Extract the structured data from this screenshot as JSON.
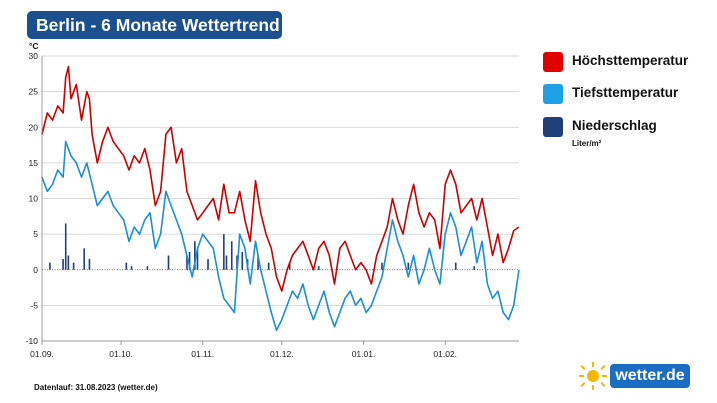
{
  "title": "Berlin - 6 Monate Wettertrend",
  "unit": "°C",
  "legend": {
    "items": [
      {
        "label": "Höchsttemperatur",
        "color": "#e00000"
      },
      {
        "label": "Tiefsttemperatur",
        "color": "#1ea0e6"
      },
      {
        "label": "Niederschlag",
        "color": "#1f3f7a"
      }
    ],
    "precip_unit": "Liter/m²"
  },
  "footer": "Datenlauf: 31.08.2023 (wetter.de)",
  "logo": {
    "text": "wetter.de",
    "icon": "sun-icon"
  },
  "chart_data": {
    "type": "line",
    "x_ticks": [
      "01.09.",
      "01.10.",
      "01.11.",
      "01.12.",
      "01.01.",
      "01.02."
    ],
    "x_start": "2023-09-01",
    "x_end": "2024-02-29",
    "ylim": [
      -10,
      30
    ],
    "yticks": [
      -10,
      -5,
      0,
      5,
      10,
      15,
      20,
      25,
      30
    ],
    "grid": true,
    "legend_position": "right",
    "series": [
      {
        "name": "Höchsttemperatur",
        "color": "#cc0000",
        "points": [
          [
            "2023-09-01",
            19
          ],
          [
            "2023-09-03",
            22
          ],
          [
            "2023-09-05",
            21
          ],
          [
            "2023-09-07",
            23
          ],
          [
            "2023-09-09",
            22
          ],
          [
            "2023-09-10",
            27
          ],
          [
            "2023-09-11",
            28.5
          ],
          [
            "2023-09-12",
            24
          ],
          [
            "2023-09-14",
            26
          ],
          [
            "2023-09-16",
            21
          ],
          [
            "2023-09-18",
            25
          ],
          [
            "2023-09-19",
            24
          ],
          [
            "2023-09-20",
            19
          ],
          [
            "2023-09-22",
            15
          ],
          [
            "2023-09-24",
            18
          ],
          [
            "2023-09-26",
            20
          ],
          [
            "2023-09-28",
            18
          ],
          [
            "2023-09-30",
            17
          ],
          [
            "2023-10-02",
            16
          ],
          [
            "2023-10-04",
            14
          ],
          [
            "2023-10-06",
            16
          ],
          [
            "2023-10-08",
            15
          ],
          [
            "2023-10-10",
            17
          ],
          [
            "2023-10-12",
            14
          ],
          [
            "2023-10-14",
            9
          ],
          [
            "2023-10-16",
            11
          ],
          [
            "2023-10-18",
            19
          ],
          [
            "2023-10-20",
            20
          ],
          [
            "2023-10-22",
            15
          ],
          [
            "2023-10-24",
            17
          ],
          [
            "2023-10-26",
            11
          ],
          [
            "2023-10-28",
            9
          ],
          [
            "2023-10-30",
            7
          ],
          [
            "2023-11-01",
            8
          ],
          [
            "2023-11-03",
            9
          ],
          [
            "2023-11-05",
            10
          ],
          [
            "2023-11-07",
            7
          ],
          [
            "2023-11-09",
            12
          ],
          [
            "2023-11-11",
            8
          ],
          [
            "2023-11-13",
            8
          ],
          [
            "2023-11-15",
            11
          ],
          [
            "2023-11-17",
            7
          ],
          [
            "2023-11-19",
            4
          ],
          [
            "2023-11-21",
            12.5
          ],
          [
            "2023-11-23",
            8
          ],
          [
            "2023-11-25",
            5
          ],
          [
            "2023-11-27",
            3
          ],
          [
            "2023-11-29",
            -1
          ],
          [
            "2023-12-01",
            -3
          ],
          [
            "2023-12-03",
            0
          ],
          [
            "2023-12-05",
            2
          ],
          [
            "2023-12-07",
            3
          ],
          [
            "2023-12-09",
            4
          ],
          [
            "2023-12-11",
            2
          ],
          [
            "2023-12-13",
            0
          ],
          [
            "2023-12-15",
            3
          ],
          [
            "2023-12-17",
            4
          ],
          [
            "2023-12-19",
            2
          ],
          [
            "2023-12-21",
            -2
          ],
          [
            "2023-12-23",
            3
          ],
          [
            "2023-12-25",
            4
          ],
          [
            "2023-12-27",
            2
          ],
          [
            "2023-12-29",
            0
          ],
          [
            "2023-12-31",
            1
          ],
          [
            "2024-01-02",
            0
          ],
          [
            "2024-01-04",
            -2
          ],
          [
            "2024-01-06",
            2
          ],
          [
            "2024-01-08",
            4
          ],
          [
            "2024-01-10",
            6
          ],
          [
            "2024-01-12",
            10
          ],
          [
            "2024-01-14",
            7
          ],
          [
            "2024-01-16",
            5
          ],
          [
            "2024-01-18",
            9
          ],
          [
            "2024-01-20",
            12
          ],
          [
            "2024-01-22",
            8
          ],
          [
            "2024-01-24",
            6
          ],
          [
            "2024-01-26",
            8
          ],
          [
            "2024-01-28",
            7
          ],
          [
            "2024-01-30",
            3
          ],
          [
            "2024-02-01",
            12
          ],
          [
            "2024-02-03",
            14
          ],
          [
            "2024-02-05",
            12
          ],
          [
            "2024-02-07",
            8
          ],
          [
            "2024-02-09",
            9
          ],
          [
            "2024-02-11",
            10
          ],
          [
            "2024-02-13",
            7
          ],
          [
            "2024-02-15",
            10
          ],
          [
            "2024-02-17",
            6
          ],
          [
            "2024-02-19",
            2
          ],
          [
            "2024-02-21",
            5
          ],
          [
            "2024-02-23",
            1
          ],
          [
            "2024-02-25",
            3
          ],
          [
            "2024-02-27",
            5.5
          ],
          [
            "2024-02-29",
            6
          ]
        ]
      },
      {
        "name": "Tiefsttemperatur",
        "color": "#1a8fd6",
        "points": [
          [
            "2023-09-01",
            13
          ],
          [
            "2023-09-03",
            11
          ],
          [
            "2023-09-05",
            12
          ],
          [
            "2023-09-07",
            14
          ],
          [
            "2023-09-09",
            13
          ],
          [
            "2023-09-10",
            18
          ],
          [
            "2023-09-12",
            16
          ],
          [
            "2023-09-14",
            15
          ],
          [
            "2023-09-16",
            13
          ],
          [
            "2023-09-18",
            15
          ],
          [
            "2023-09-20",
            12
          ],
          [
            "2023-09-22",
            9
          ],
          [
            "2023-09-24",
            10
          ],
          [
            "2023-09-26",
            11
          ],
          [
            "2023-09-28",
            9
          ],
          [
            "2023-09-30",
            8
          ],
          [
            "2023-10-02",
            7
          ],
          [
            "2023-10-04",
            4
          ],
          [
            "2023-10-06",
            6
          ],
          [
            "2023-10-08",
            5
          ],
          [
            "2023-10-10",
            7
          ],
          [
            "2023-10-12",
            8
          ],
          [
            "2023-10-14",
            3
          ],
          [
            "2023-10-16",
            5
          ],
          [
            "2023-10-18",
            11
          ],
          [
            "2023-10-20",
            9
          ],
          [
            "2023-10-22",
            7
          ],
          [
            "2023-10-24",
            5
          ],
          [
            "2023-10-26",
            2
          ],
          [
            "2023-10-28",
            -1
          ],
          [
            "2023-10-30",
            3
          ],
          [
            "2023-11-01",
            5
          ],
          [
            "2023-11-03",
            4
          ],
          [
            "2023-11-05",
            3
          ],
          [
            "2023-11-07",
            -1
          ],
          [
            "2023-11-09",
            -4
          ],
          [
            "2023-11-11",
            -5
          ],
          [
            "2023-11-13",
            -6
          ],
          [
            "2023-11-15",
            5
          ],
          [
            "2023-11-17",
            3
          ],
          [
            "2023-11-19",
            -2
          ],
          [
            "2023-11-21",
            4
          ],
          [
            "2023-11-23",
            0
          ],
          [
            "2023-11-25",
            -3
          ],
          [
            "2023-11-27",
            -6
          ],
          [
            "2023-11-29",
            -8.5
          ],
          [
            "2023-12-01",
            -7
          ],
          [
            "2023-12-03",
            -5
          ],
          [
            "2023-12-05",
            -3
          ],
          [
            "2023-12-07",
            -4
          ],
          [
            "2023-12-09",
            -2
          ],
          [
            "2023-12-11",
            -5
          ],
          [
            "2023-12-13",
            -7
          ],
          [
            "2023-12-15",
            -5
          ],
          [
            "2023-12-17",
            -3
          ],
          [
            "2023-12-19",
            -6
          ],
          [
            "2023-12-21",
            -8
          ],
          [
            "2023-12-23",
            -6
          ],
          [
            "2023-12-25",
            -4
          ],
          [
            "2023-12-27",
            -3
          ],
          [
            "2023-12-29",
            -5
          ],
          [
            "2023-12-31",
            -4
          ],
          [
            "2024-01-02",
            -6
          ],
          [
            "2024-01-04",
            -5
          ],
          [
            "2024-01-06",
            -3
          ],
          [
            "2024-01-08",
            -1
          ],
          [
            "2024-01-10",
            3
          ],
          [
            "2024-01-12",
            7
          ],
          [
            "2024-01-14",
            4
          ],
          [
            "2024-01-16",
            2
          ],
          [
            "2024-01-18",
            -1
          ],
          [
            "2024-01-20",
            2
          ],
          [
            "2024-01-22",
            -2
          ],
          [
            "2024-01-24",
            0
          ],
          [
            "2024-01-26",
            3
          ],
          [
            "2024-01-28",
            0
          ],
          [
            "2024-01-30",
            -2
          ],
          [
            "2024-02-01",
            5
          ],
          [
            "2024-02-03",
            8
          ],
          [
            "2024-02-05",
            6
          ],
          [
            "2024-02-07",
            2
          ],
          [
            "2024-02-09",
            4
          ],
          [
            "2024-02-11",
            6
          ],
          [
            "2024-02-13",
            1
          ],
          [
            "2024-02-15",
            4
          ],
          [
            "2024-02-17",
            -2
          ],
          [
            "2024-02-19",
            -4
          ],
          [
            "2024-02-21",
            -3
          ],
          [
            "2024-02-23",
            -6
          ],
          [
            "2024-02-25",
            -7
          ],
          [
            "2024-02-27",
            -5
          ],
          [
            "2024-02-29",
            0
          ]
        ]
      },
      {
        "name": "Niederschlag",
        "color": "#1f3f7a",
        "bars": [
          [
            "2023-09-04",
            1
          ],
          [
            "2023-09-09",
            1.5
          ],
          [
            "2023-09-10",
            6.5
          ],
          [
            "2023-09-11",
            2
          ],
          [
            "2023-09-13",
            1
          ],
          [
            "2023-09-17",
            3
          ],
          [
            "2023-09-19",
            1.5
          ],
          [
            "2023-10-03",
            1
          ],
          [
            "2023-10-05",
            0.5
          ],
          [
            "2023-10-11",
            0.5
          ],
          [
            "2023-10-19",
            2
          ],
          [
            "2023-10-26",
            2
          ],
          [
            "2023-10-27",
            2.5
          ],
          [
            "2023-10-29",
            4
          ],
          [
            "2023-10-30",
            3
          ],
          [
            "2023-11-03",
            1.5
          ],
          [
            "2023-11-09",
            5
          ],
          [
            "2023-11-10",
            2
          ],
          [
            "2023-11-12",
            4
          ],
          [
            "2023-11-14",
            2
          ],
          [
            "2023-11-16",
            2.5
          ],
          [
            "2023-11-18",
            1.5
          ],
          [
            "2023-11-22",
            2
          ],
          [
            "2023-11-26",
            1
          ],
          [
            "2023-12-04",
            1
          ],
          [
            "2023-12-15",
            0.5
          ],
          [
            "2024-01-08",
            1
          ],
          [
            "2024-01-18",
            1
          ],
          [
            "2024-02-05",
            1
          ],
          [
            "2024-02-12",
            0.5
          ]
        ]
      }
    ]
  }
}
